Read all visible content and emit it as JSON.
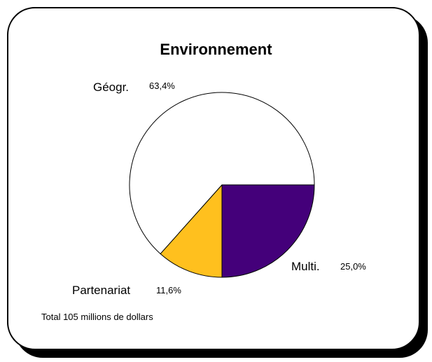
{
  "chart_data": {
    "type": "pie",
    "title": "Environnement",
    "slices": [
      {
        "label": "Multi.",
        "value": 25.0,
        "value_label": "25,0%",
        "color": "#44007a"
      },
      {
        "label": "Partenariat",
        "value": 11.6,
        "value_label": "11,6%",
        "color": "#ffc01e"
      },
      {
        "label": "Géogr.",
        "value": 63.4,
        "value_label": "63,4%",
        "color": "#ffffff"
      }
    ],
    "note": "Total 105 millions de dollars"
  }
}
